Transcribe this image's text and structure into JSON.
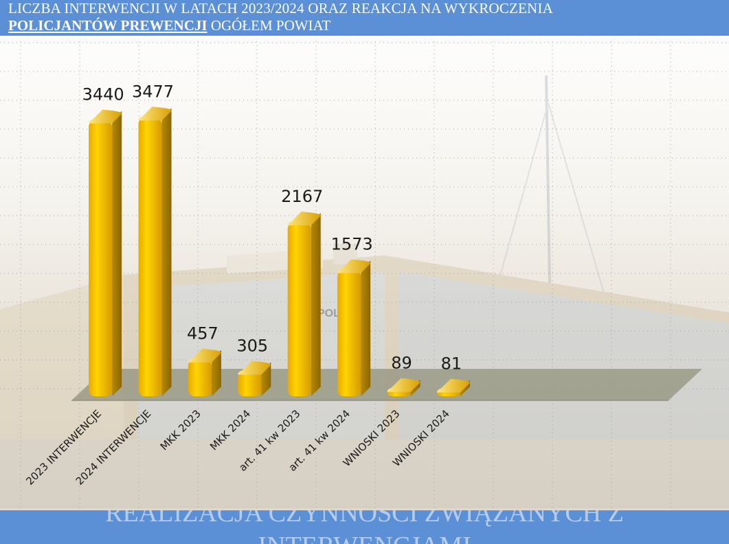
{
  "header": {
    "line1": "LICZBA INTERWENCJI W LATACH  2023/2024 ORAZ REAKCJA NA WYKROCZENIA",
    "line2_bold": "POLICJANTÓW PREWENCJI",
    "line2_rest": " OGÓŁEM POWIAT"
  },
  "background": {
    "sign_text": "POLICJA"
  },
  "footer": {
    "line1": "REALIZACJA CZYNNOŚCI ZWIĄZANYCH Z",
    "line2": "INTERWENCJAMI"
  },
  "colors": {
    "header_bg": "#5b8fd6",
    "bar_front": "#f3b400",
    "bar_side": "#a77c00",
    "floor": "#9a9a86"
  },
  "chart_data": {
    "type": "bar",
    "categories": [
      "2023 INTERWENCJE",
      "2024 INTERWENCJE",
      "MKK 2023",
      "MKK 2024",
      "art. 41 kw 2023",
      "art. 41 kw 2024",
      "WNIOSKI 2023",
      "WNIOSKI 2024"
    ],
    "values": [
      3440,
      3477,
      457,
      305,
      2167,
      1573,
      89,
      81
    ],
    "data_labels": [
      "3440",
      "3477",
      "457",
      "305",
      "2167",
      "1573",
      "89",
      "81"
    ],
    "title": "",
    "xlabel": "",
    "ylabel": "",
    "ylim": [
      0,
      3600
    ],
    "grid": true,
    "legend": "none",
    "style": "3d-cylinder"
  }
}
